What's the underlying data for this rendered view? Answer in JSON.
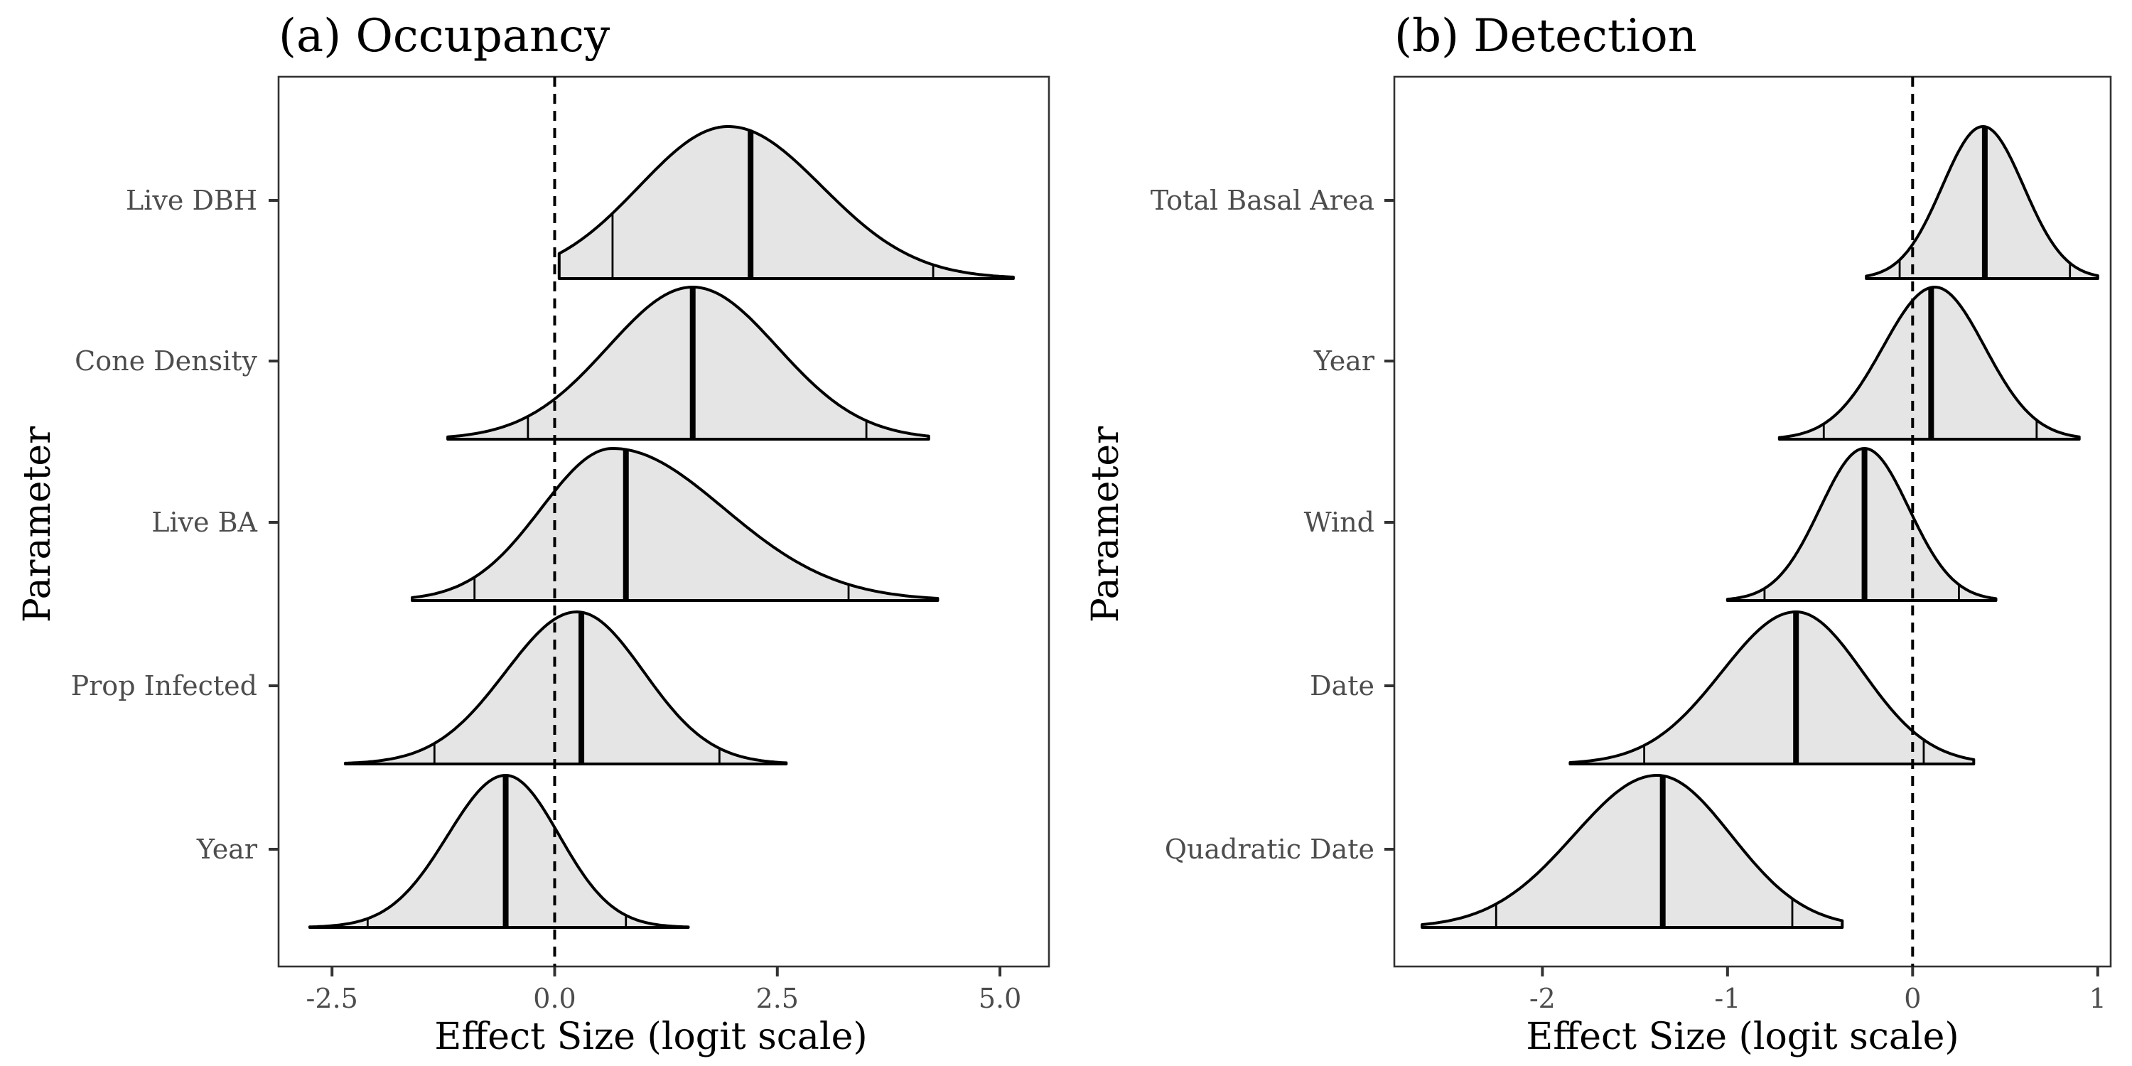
{
  "chart_data": [
    {
      "type": "ridgeline",
      "title": "(a) Occupancy",
      "xlabel": "Effect Size (logit scale)",
      "ylabel": "Parameter",
      "xlim": [
        -3.1,
        5.55
      ],
      "xticks": [
        -2.5,
        0.0,
        2.5,
        5.0
      ],
      "xtick_labels": [
        "-2.5",
        "0.0",
        "2.5",
        "5.0"
      ],
      "reference_line_x": 0,
      "grid": false,
      "fill_color": "#e5e5e5",
      "series": [
        {
          "name": "Live DBH",
          "min": 0.05,
          "max": 5.15,
          "ci_low": 0.65,
          "median": 2.2,
          "ci_high": 4.25,
          "mode": 1.95,
          "sd_left": 1.0,
          "sd_right": 1.05
        },
        {
          "name": "Cone Density",
          "min": -1.2,
          "max": 4.2,
          "ci_low": -0.3,
          "median": 1.55,
          "ci_high": 3.5,
          "mode": 1.55,
          "sd_left": 0.95,
          "sd_right": 0.95
        },
        {
          "name": "Live BA",
          "min": -1.6,
          "max": 4.3,
          "ci_low": -0.9,
          "median": 0.8,
          "ci_high": 3.3,
          "mode": 0.65,
          "sd_left": 0.8,
          "sd_right": 1.25
        },
        {
          "name": "Prop Infected",
          "min": -2.35,
          "max": 2.6,
          "ci_low": -1.35,
          "median": 0.3,
          "ci_high": 1.85,
          "mode": 0.25,
          "sd_left": 0.8,
          "sd_right": 0.75
        },
        {
          "name": "Year",
          "min": -2.75,
          "max": 1.5,
          "ci_low": -2.1,
          "median": -0.55,
          "ci_high": 0.8,
          "mode": -0.55,
          "sd_left": 0.65,
          "sd_right": 0.6
        }
      ]
    },
    {
      "type": "ridgeline",
      "title": "(b) Detection",
      "xlabel": "Effect Size (logit scale)",
      "ylabel": "Parameter",
      "xlim": [
        -2.8,
        1.07
      ],
      "xticks": [
        -2,
        -1,
        0,
        1
      ],
      "xtick_labels": [
        "-2",
        "-1",
        "0",
        "1"
      ],
      "reference_line_x": 0,
      "grid": false,
      "fill_color": "#e5e5e5",
      "series": [
        {
          "name": "Total Basal Area",
          "min": -0.25,
          "max": 1.0,
          "ci_low": -0.07,
          "median": 0.39,
          "ci_high": 0.85,
          "mode": 0.38,
          "sd_left": 0.22,
          "sd_right": 0.22
        },
        {
          "name": "Year",
          "min": -0.72,
          "max": 0.9,
          "ci_low": -0.48,
          "median": 0.1,
          "ci_high": 0.67,
          "mode": 0.12,
          "sd_left": 0.28,
          "sd_right": 0.27
        },
        {
          "name": "Wind",
          "min": -1.0,
          "max": 0.45,
          "ci_low": -0.8,
          "median": -0.26,
          "ci_high": 0.25,
          "mode": -0.26,
          "sd_left": 0.24,
          "sd_right": 0.24
        },
        {
          "name": "Date",
          "min": -1.85,
          "max": 0.33,
          "ci_low": -1.45,
          "median": -0.63,
          "ci_high": 0.06,
          "mode": -0.63,
          "sd_left": 0.4,
          "sd_right": 0.36
        },
        {
          "name": "Quadratic Date",
          "min": -2.65,
          "max": -0.38,
          "ci_low": -2.25,
          "median": -1.35,
          "ci_high": -0.65,
          "mode": -1.38,
          "sd_left": 0.45,
          "sd_right": 0.4
        }
      ]
    }
  ]
}
